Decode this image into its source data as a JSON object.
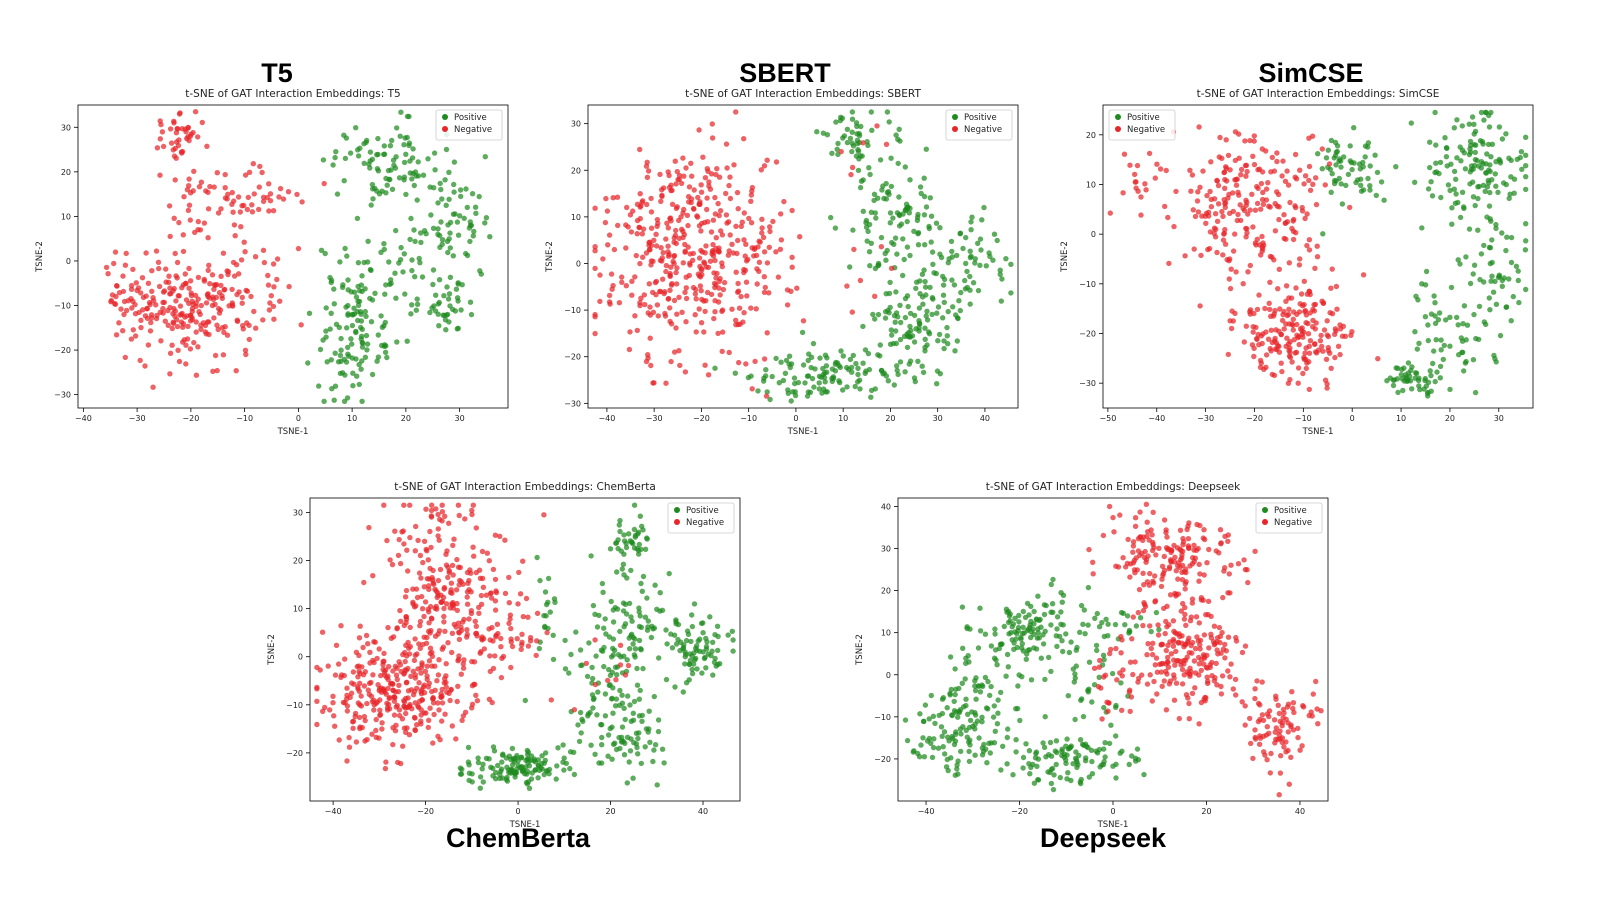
{
  "labels": {
    "t5": "T5",
    "sbert": "SBERT",
    "simcse": "SimCSE",
    "chemberta": "ChemBerta",
    "deepseek": "Deepseek"
  },
  "colors": {
    "positive": "#1f8a1f",
    "negative": "#e8262a"
  },
  "chart_data": [
    {
      "id": "t5",
      "type": "scatter",
      "title": "t-SNE of GAT Interaction Embeddings: T5",
      "xlabel": "TSNE-1",
      "ylabel": "TSNE-2",
      "xlim": [
        -41,
        39
      ],
      "ylim": [
        -33,
        35
      ],
      "xticks": [
        -40,
        -30,
        -20,
        -10,
        0,
        10,
        20,
        30
      ],
      "yticks": [
        -30,
        -20,
        -10,
        0,
        10,
        20,
        30
      ],
      "legend": "top-right",
      "series": [
        {
          "name": "Positive",
          "color": "#1f8a1f",
          "clusters": [
            [
              16,
              22,
              5,
              5,
              90
            ],
            [
              28,
              10,
              4,
              5,
              60
            ],
            [
              10,
              -15,
              3,
              9,
              120
            ],
            [
              28,
              -10,
              3,
              3,
              40
            ],
            [
              20,
              0,
              4,
              4,
              30
            ],
            [
              17,
              -18,
              2,
              2,
              10
            ]
          ]
        },
        {
          "name": "Negative",
          "color": "#e8262a",
          "clusters": [
            [
              -22,
              28,
              3,
              3,
              40
            ],
            [
              -13,
              13,
              6,
              5,
              80
            ],
            [
              -20,
              -10,
              7,
              6,
              240
            ],
            [
              -32,
              -10,
              3,
              5,
              20
            ],
            [
              -2,
              -5,
              2,
              3,
              8
            ]
          ]
        }
      ]
    },
    {
      "id": "sbert",
      "type": "scatter",
      "title": "t-SNE of GAT Interaction Embeddings: SBERT",
      "xlabel": "TSNE-1",
      "ylabel": "TSNE-2",
      "xlim": [
        -44,
        47
      ],
      "ylim": [
        -31,
        34
      ],
      "xticks": [
        -40,
        -30,
        -20,
        -10,
        0,
        10,
        20,
        30,
        40
      ],
      "yticks": [
        -30,
        -20,
        -10,
        0,
        10,
        20,
        30
      ],
      "legend": "top-right",
      "series": [
        {
          "name": "Positive",
          "color": "#1f8a1f",
          "clusters": [
            [
              11,
              27,
              3,
              3,
              40
            ],
            [
              20,
              7,
              5,
              9,
              120
            ],
            [
              38,
              2,
              4,
              4,
              40
            ],
            [
              5,
              -24,
              8,
              2.5,
              110
            ],
            [
              25,
              -15,
              5,
              5,
              80
            ],
            [
              30,
              -5,
              5,
              4,
              40
            ]
          ]
        },
        {
          "name": "Negative",
          "color": "#e8262a",
          "clusters": [
            [
              -22,
              2,
              10,
              11,
              450
            ],
            [
              13,
              24,
              3,
              3,
              5
            ],
            [
              12,
              -5,
              4,
              6,
              6
            ]
          ]
        }
      ]
    },
    {
      "id": "simcse",
      "type": "scatter",
      "title": "t-SNE of GAT Interaction Embeddings: SimCSE",
      "xlabel": "TSNE-1",
      "ylabel": "TSNE-2",
      "xlim": [
        -51,
        37
      ],
      "ylim": [
        -35,
        26
      ],
      "xticks": [
        -50,
        -40,
        -30,
        -20,
        -10,
        0,
        10,
        20,
        30
      ],
      "yticks": [
        -30,
        -20,
        -10,
        0,
        10,
        20
      ],
      "legend": "top-left",
      "series": [
        {
          "name": "Positive",
          "color": "#1f8a1f",
          "clusters": [
            [
              0,
              14,
              4,
              4,
              60
            ],
            [
              25,
              14,
              5,
              5,
              130
            ],
            [
              30,
              -5,
              3,
              6,
              50
            ],
            [
              20,
              -20,
              5,
              6,
              70
            ],
            [
              12,
              -29,
              2.5,
              1.5,
              40
            ]
          ]
        },
        {
          "name": "Negative",
          "color": "#e8262a",
          "clusters": [
            [
              -22,
              6,
              7,
              7,
              200
            ],
            [
              -12,
              -20,
              6,
              5,
              200
            ],
            [
              -44,
              11,
              3,
              3,
              20
            ],
            [
              -8,
              5,
              3,
              6,
              20
            ]
          ]
        }
      ]
    },
    {
      "id": "chemberta",
      "type": "scatter",
      "title": "t-SNE of GAT Interaction Embeddings: ChemBerta",
      "xlabel": "TSNE-1",
      "ylabel": "TSNE-2",
      "xlim": [
        -45,
        48
      ],
      "ylim": [
        -30,
        33
      ],
      "xticks": [
        -40,
        -20,
        0,
        20,
        40
      ],
      "yticks": [
        -20,
        -10,
        0,
        10,
        20,
        30
      ],
      "legend": "top-right",
      "series": [
        {
          "name": "Positive",
          "color": "#1f8a1f",
          "clusters": [
            [
              24,
              24,
              3,
              3,
              40
            ],
            [
              25,
              8,
              4,
              5,
              70
            ],
            [
              38,
              2,
              4,
              4,
              80
            ],
            [
              0,
              -23,
              7,
              2,
              130
            ],
            [
              22,
              -15,
              5,
              5,
              90
            ],
            [
              20,
              -2,
              4,
              4,
              40
            ],
            [
              6,
              8,
              2,
              6,
              20
            ]
          ]
        },
        {
          "name": "Negative",
          "color": "#e8262a",
          "clusters": [
            [
              -28,
              -7,
              8,
              6,
              300
            ],
            [
              -15,
              12,
              7,
              10,
              280
            ],
            [
              -2,
              5,
              4,
              5,
              30
            ],
            [
              17,
              -2,
              3,
              4,
              10
            ]
          ]
        }
      ]
    },
    {
      "id": "deepseek",
      "type": "scatter",
      "title": "t-SNE of GAT Interaction Embeddings: Deepseek",
      "xlabel": "TSNE-1",
      "ylabel": "TSNE-2",
      "xlim": [
        -46,
        46
      ],
      "ylim": [
        -30,
        42
      ],
      "xticks": [
        -40,
        -20,
        0,
        20,
        40
      ],
      "yticks": [
        -20,
        -10,
        0,
        10,
        20,
        30,
        40
      ],
      "legend": "top-right",
      "series": [
        {
          "name": "Positive",
          "color": "#1f8a1f",
          "clusters": [
            [
              -18,
              10,
              6,
              5,
              130
            ],
            [
              -33,
              -15,
              6,
              5,
              110
            ],
            [
              -28,
              -2,
              4,
              4,
              40
            ],
            [
              -8,
              -20,
              6,
              3,
              100
            ],
            [
              -5,
              -2,
              3,
              5,
              30
            ],
            [
              2,
              12,
              3,
              2,
              20
            ]
          ]
        },
        {
          "name": "Negative",
          "color": "#e8262a",
          "clusters": [
            [
              12,
              28,
              7,
              5,
              170
            ],
            [
              16,
              5,
              6,
              7,
              200
            ],
            [
              35,
              -12,
              4,
              5,
              90
            ],
            [
              0,
              0,
              3,
              6,
              30
            ]
          ]
        }
      ]
    }
  ]
}
